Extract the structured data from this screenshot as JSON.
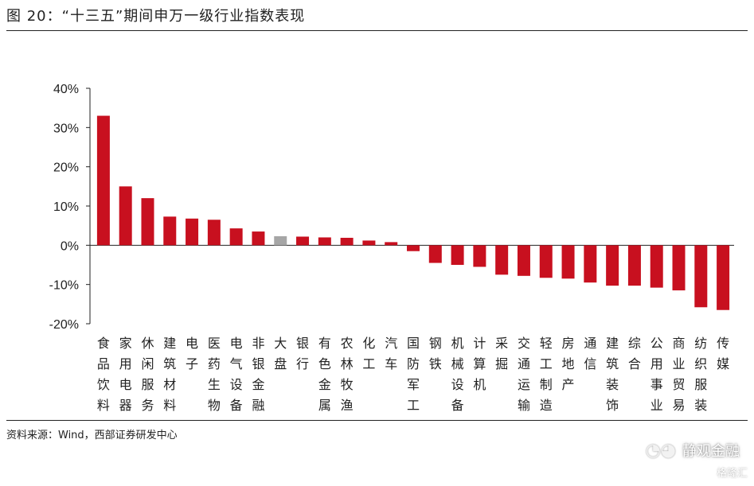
{
  "header": {
    "title": "图 20：“十三五”期间申万一级行业指数表现"
  },
  "footer": {
    "source": "资料来源：Wind，西部证券研发中心"
  },
  "watermark": {
    "text": "静观金融",
    "icon": "wechat-icon",
    "brand": "格隆汇"
  },
  "colors": {
    "bar": "#C8101F",
    "highlight": "#A6A6A6",
    "axis": "#222222"
  },
  "chart_data": {
    "type": "bar",
    "categories": [
      "食品饮料",
      "家用电器",
      "休闲服务",
      "建筑材料",
      "电子",
      "医药生物",
      "电气设备",
      "非银金融",
      "大盘",
      "银行",
      "有色金属",
      "农林牧渔",
      "化工",
      "汽车",
      "国防军工",
      "钢铁",
      "机械设备",
      "计算机",
      "采掘",
      "交通运输",
      "轻工制造",
      "房地产",
      "通信",
      "建筑装饰",
      "综合",
      "公用事业",
      "商业贸易",
      "纺织服装",
      "传媒"
    ],
    "values": [
      33,
      15,
      12,
      7.3,
      6.8,
      6.5,
      4.3,
      3.5,
      2.3,
      2.2,
      2.0,
      1.9,
      1.2,
      0.8,
      -1.5,
      -4.5,
      -5.0,
      -5.5,
      -7.5,
      -7.8,
      -8.3,
      -8.5,
      -9.5,
      -10.3,
      -10.3,
      -10.8,
      -11.5,
      -15.8,
      -16.5
    ],
    "highlight": "大盘",
    "yticks": [
      "40%",
      "30%",
      "20%",
      "10%",
      "0%",
      "-10%",
      "-20%"
    ],
    "ylim": [
      -20,
      40
    ],
    "xlabel": "",
    "ylabel": ""
  }
}
